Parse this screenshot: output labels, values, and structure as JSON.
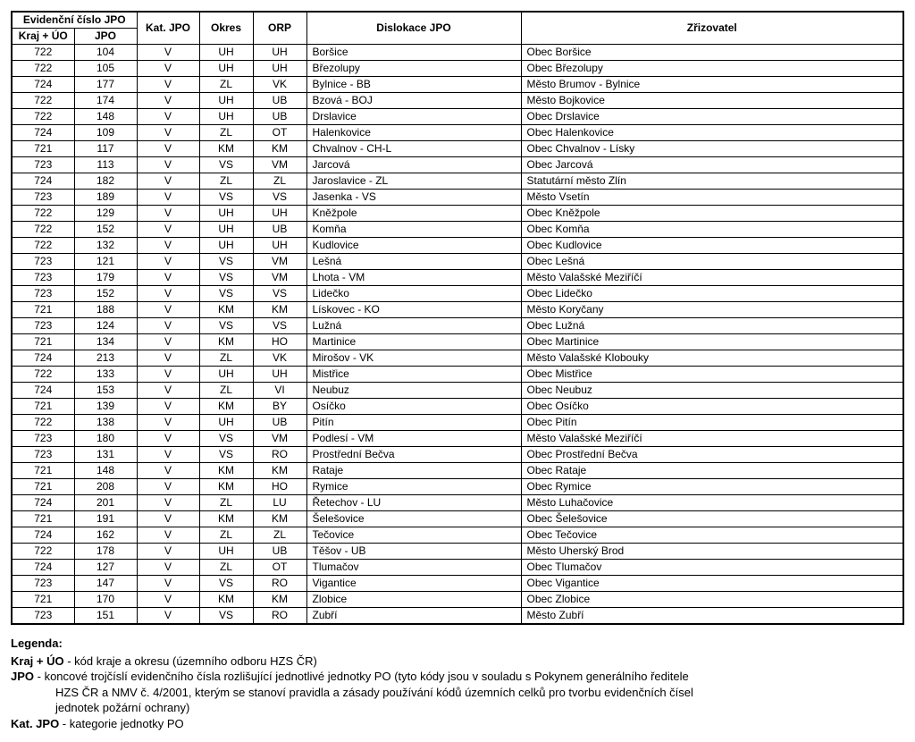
{
  "table": {
    "header": {
      "evidencni": "Evidenční číslo JPO",
      "kraj_uo": "Kraj + ÚO",
      "jpo": "JPO",
      "kat_jpo": "Kat. JPO",
      "okres": "Okres",
      "orp": "ORP",
      "dislokace": "Dislokace JPO",
      "zrizovatel": "Zřizovatel"
    },
    "rows": [
      {
        "kraj": "722",
        "jpo": "104",
        "kat": "V",
        "okres": "UH",
        "orp": "UH",
        "dis": "Boršice",
        "zri": "Obec Boršice"
      },
      {
        "kraj": "722",
        "jpo": "105",
        "kat": "V",
        "okres": "UH",
        "orp": "UH",
        "dis": "Březolupy",
        "zri": "Obec Březolupy"
      },
      {
        "kraj": "724",
        "jpo": "177",
        "kat": "V",
        "okres": "ZL",
        "orp": "VK",
        "dis": "Bylnice - BB",
        "zri": "Město Brumov - Bylnice"
      },
      {
        "kraj": "722",
        "jpo": "174",
        "kat": "V",
        "okres": "UH",
        "orp": "UB",
        "dis": "Bzová - BOJ",
        "zri": "Město Bojkovice"
      },
      {
        "kraj": "722",
        "jpo": "148",
        "kat": "V",
        "okres": "UH",
        "orp": "UB",
        "dis": "Drslavice",
        "zri": "Obec Drslavice"
      },
      {
        "kraj": "724",
        "jpo": "109",
        "kat": "V",
        "okres": "ZL",
        "orp": "OT",
        "dis": "Halenkovice",
        "zri": "Obec Halenkovice"
      },
      {
        "kraj": "721",
        "jpo": "117",
        "kat": "V",
        "okres": "KM",
        "orp": "KM",
        "dis": "Chvalnov - CH-L",
        "zri": "Obec Chvalnov - Lísky"
      },
      {
        "kraj": "723",
        "jpo": "113",
        "kat": "V",
        "okres": "VS",
        "orp": "VM",
        "dis": "Jarcová",
        "zri": "Obec Jarcová"
      },
      {
        "kraj": "724",
        "jpo": "182",
        "kat": "V",
        "okres": "ZL",
        "orp": "ZL",
        "dis": "Jaroslavice - ZL",
        "zri": "Statutární město Zlín"
      },
      {
        "kraj": "723",
        "jpo": "189",
        "kat": "V",
        "okres": "VS",
        "orp": "VS",
        "dis": "Jasenka - VS",
        "zri": "Město Vsetín"
      },
      {
        "kraj": "722",
        "jpo": "129",
        "kat": "V",
        "okres": "UH",
        "orp": "UH",
        "dis": "Kněžpole",
        "zri": "Obec Kněžpole"
      },
      {
        "kraj": "722",
        "jpo": "152",
        "kat": "V",
        "okres": "UH",
        "orp": "UB",
        "dis": "Komňa",
        "zri": "Obec Komňa"
      },
      {
        "kraj": "722",
        "jpo": "132",
        "kat": "V",
        "okres": "UH",
        "orp": "UH",
        "dis": "Kudlovice",
        "zri": "Obec Kudlovice"
      },
      {
        "kraj": "723",
        "jpo": "121",
        "kat": "V",
        "okres": "VS",
        "orp": "VM",
        "dis": "Lešná",
        "zri": "Obec Lešná"
      },
      {
        "kraj": "723",
        "jpo": "179",
        "kat": "V",
        "okres": "VS",
        "orp": "VM",
        "dis": "Lhota - VM",
        "zri": "Město Valašské Meziříčí"
      },
      {
        "kraj": "723",
        "jpo": "152",
        "kat": "V",
        "okres": "VS",
        "orp": "VS",
        "dis": "Lidečko",
        "zri": "Obec Lidečko"
      },
      {
        "kraj": "721",
        "jpo": "188",
        "kat": "V",
        "okres": "KM",
        "orp": "KM",
        "dis": "Lískovec - KO",
        "zri": "Město Koryčany"
      },
      {
        "kraj": "723",
        "jpo": "124",
        "kat": "V",
        "okres": "VS",
        "orp": "VS",
        "dis": "Lužná",
        "zri": "Obec Lužná"
      },
      {
        "kraj": "721",
        "jpo": "134",
        "kat": "V",
        "okres": "KM",
        "orp": "HO",
        "dis": "Martinice",
        "zri": "Obec Martinice"
      },
      {
        "kraj": "724",
        "jpo": "213",
        "kat": "V",
        "okres": "ZL",
        "orp": "VK",
        "dis": "Mirošov - VK",
        "zri": "Město Valašské Klobouky"
      },
      {
        "kraj": "722",
        "jpo": "133",
        "kat": "V",
        "okres": "UH",
        "orp": "UH",
        "dis": "Mistřice",
        "zri": "Obec Mistřice"
      },
      {
        "kraj": "724",
        "jpo": "153",
        "kat": "V",
        "okres": "ZL",
        "orp": "VI",
        "dis": "Neubuz",
        "zri": "Obec Neubuz"
      },
      {
        "kraj": "721",
        "jpo": "139",
        "kat": "V",
        "okres": "KM",
        "orp": "BY",
        "dis": "Osíčko",
        "zri": "Obec Osíčko"
      },
      {
        "kraj": "722",
        "jpo": "138",
        "kat": "V",
        "okres": "UH",
        "orp": "UB",
        "dis": "Pitín",
        "zri": "Obec Pitín"
      },
      {
        "kraj": "723",
        "jpo": "180",
        "kat": "V",
        "okres": "VS",
        "orp": "VM",
        "dis": "Podlesí - VM",
        "zri": "Město Valašské Meziříčí"
      },
      {
        "kraj": "723",
        "jpo": "131",
        "kat": "V",
        "okres": "VS",
        "orp": "RO",
        "dis": "Prostřední Bečva",
        "zri": "Obec Prostřední Bečva"
      },
      {
        "kraj": "721",
        "jpo": "148",
        "kat": "V",
        "okres": "KM",
        "orp": "KM",
        "dis": "Rataje",
        "zri": "Obec Rataje"
      },
      {
        "kraj": "721",
        "jpo": "208",
        "kat": "V",
        "okres": "KM",
        "orp": "HO",
        "dis": "Rymice",
        "zri": "Obec Rymice"
      },
      {
        "kraj": "724",
        "jpo": "201",
        "kat": "V",
        "okres": "ZL",
        "orp": "LU",
        "dis": "Řetechov - LU",
        "zri": "Město Luhačovice"
      },
      {
        "kraj": "721",
        "jpo": "191",
        "kat": "V",
        "okres": "KM",
        "orp": "KM",
        "dis": "Šelešovice",
        "zri": "Obec Šelešovice"
      },
      {
        "kraj": "724",
        "jpo": "162",
        "kat": "V",
        "okres": "ZL",
        "orp": "ZL",
        "dis": "Tečovice",
        "zri": "Obec Tečovice"
      },
      {
        "kraj": "722",
        "jpo": "178",
        "kat": "V",
        "okres": "UH",
        "orp": "UB",
        "dis": "Těšov - UB",
        "zri": "Město Uherský Brod"
      },
      {
        "kraj": "724",
        "jpo": "127",
        "kat": "V",
        "okres": "ZL",
        "orp": "OT",
        "dis": "Tlumačov",
        "zri": "Obec Tlumačov"
      },
      {
        "kraj": "723",
        "jpo": "147",
        "kat": "V",
        "okres": "VS",
        "orp": "RO",
        "dis": "Vigantice",
        "zri": "Obec Vigantice"
      },
      {
        "kraj": "721",
        "jpo": "170",
        "kat": "V",
        "okres": "KM",
        "orp": "KM",
        "dis": "Zlobice",
        "zri": "Obec Zlobice"
      },
      {
        "kraj": "723",
        "jpo": "151",
        "kat": "V",
        "okres": "VS",
        "orp": "RO",
        "dis": "Zubří",
        "zri": "Město Zubří"
      }
    ]
  },
  "legend": {
    "title": "Legenda:",
    "items": [
      {
        "term": "Kraj + ÚO",
        "text": " - kód kraje a okresu (územního odboru HZS ČR)"
      },
      {
        "term": "JPO",
        "text": " - koncové trojčíslí evidenčního čísla rozlišující jednotlivé jednotky PO (tyto kódy jsou v souladu s Pokynem generálního ředitele"
      },
      {
        "term": "",
        "text": "HZS ČR a NMV č. 4/2001, kterým se stanoví pravidla a zásady používání kódů územních celků pro tvorbu evidenčních čísel"
      },
      {
        "term": "",
        "text": "jednotek požární ochrany)"
      },
      {
        "term": "Kat. JPO",
        "text": " - kategorie jednotky PO"
      }
    ]
  }
}
